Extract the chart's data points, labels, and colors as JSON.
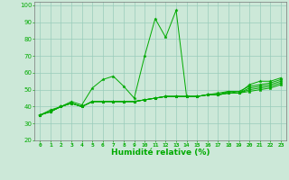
{
  "xlabel": "Humidité relative (%)",
  "background_color": "#cce8d8",
  "grid_color": "#99ccbb",
  "line_color": "#00aa00",
  "xlim": [
    -0.5,
    23.5
  ],
  "ylim": [
    20,
    102
  ],
  "yticks": [
    20,
    30,
    40,
    50,
    60,
    70,
    80,
    90,
    100
  ],
  "xticks": [
    0,
    1,
    2,
    3,
    4,
    5,
    6,
    7,
    8,
    9,
    10,
    11,
    12,
    13,
    14,
    15,
    16,
    17,
    18,
    19,
    20,
    21,
    22,
    23
  ],
  "series": [
    [
      35,
      38,
      40,
      43,
      41,
      51,
      56,
      58,
      52,
      45,
      70,
      92,
      81,
      97,
      46,
      46,
      47,
      48,
      49,
      48,
      53,
      55,
      55,
      57
    ],
    [
      35,
      37,
      40,
      42,
      40,
      43,
      43,
      43,
      43,
      43,
      44,
      45,
      46,
      46,
      46,
      46,
      47,
      47,
      48,
      48,
      49,
      50,
      51,
      53
    ],
    [
      35,
      37,
      40,
      42,
      40,
      43,
      43,
      43,
      43,
      43,
      44,
      45,
      46,
      46,
      46,
      46,
      47,
      47,
      48,
      48,
      50,
      51,
      52,
      54
    ],
    [
      35,
      37,
      40,
      42,
      40,
      43,
      43,
      43,
      43,
      43,
      44,
      45,
      46,
      46,
      46,
      46,
      47,
      47,
      48,
      48,
      51,
      52,
      53,
      55
    ],
    [
      35,
      37,
      40,
      42,
      40,
      43,
      43,
      43,
      43,
      43,
      44,
      45,
      46,
      46,
      46,
      46,
      47,
      47,
      49,
      49,
      52,
      53,
      54,
      56
    ]
  ]
}
